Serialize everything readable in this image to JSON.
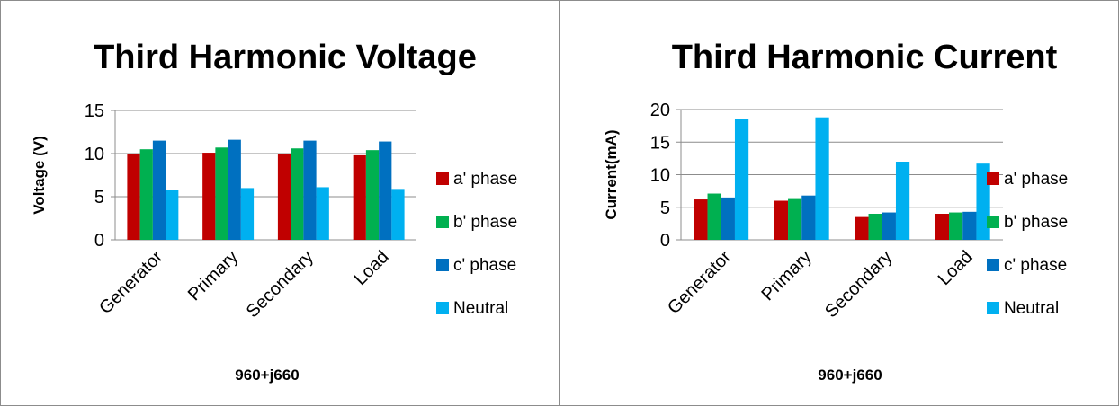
{
  "chart_data": [
    {
      "type": "bar",
      "title": "Third Harmonic Voltage",
      "ylabel": "Voltage (V)",
      "xlabel": "960+j660",
      "categories": [
        "Generator",
        "Primary",
        "Secondary",
        "Load"
      ],
      "ylim": [
        0,
        15
      ],
      "yticks": [
        0,
        5,
        10,
        15
      ],
      "grid": true,
      "legend_position": "right",
      "series": [
        {
          "name": "a' phase",
          "color": "#c00000",
          "values": [
            10.0,
            10.1,
            9.9,
            9.8
          ]
        },
        {
          "name": "b' phase",
          "color": "#00b050",
          "values": [
            10.5,
            10.7,
            10.6,
            10.4
          ]
        },
        {
          "name": "c' phase",
          "color": "#0070c0",
          "values": [
            11.5,
            11.6,
            11.5,
            11.4
          ]
        },
        {
          "name": "Neutral",
          "color": "#00b0f0",
          "values": [
            5.8,
            6.0,
            6.1,
            5.9
          ]
        }
      ]
    },
    {
      "type": "bar",
      "title": "Third Harmonic Current",
      "ylabel": "Current(mA)",
      "xlabel": "960+j660",
      "categories": [
        "Generator",
        "Primary",
        "Secondary",
        "Load"
      ],
      "ylim": [
        0,
        20
      ],
      "yticks": [
        0,
        5,
        10,
        15,
        20
      ],
      "grid": true,
      "legend_position": "right",
      "series": [
        {
          "name": "a' phase",
          "color": "#c00000",
          "values": [
            6.2,
            6.0,
            3.5,
            4.0
          ]
        },
        {
          "name": "b' phase",
          "color": "#00b050",
          "values": [
            7.1,
            6.4,
            4.0,
            4.2
          ]
        },
        {
          "name": "c' phase",
          "color": "#0070c0",
          "values": [
            6.5,
            6.8,
            4.2,
            4.3
          ]
        },
        {
          "name": "Neutral",
          "color": "#00b0f0",
          "values": [
            18.5,
            18.8,
            12.0,
            11.7
          ]
        }
      ]
    }
  ]
}
